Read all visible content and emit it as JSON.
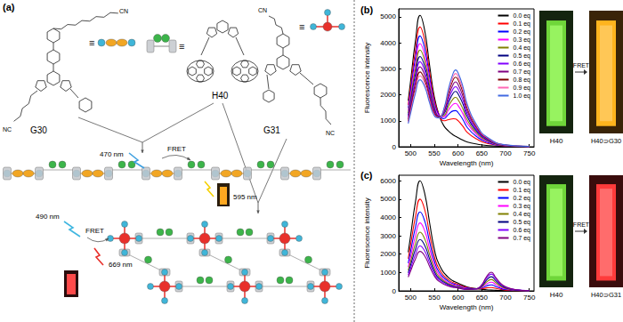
{
  "diagram": {
    "panel_label": "(a)",
    "molecules": [
      {
        "label": "G30",
        "equiv": "≡",
        "end_groups": [
          "CN",
          "NC"
        ]
      },
      {
        "label": "H40",
        "equiv": "≡"
      },
      {
        "label": "G31",
        "equiv": "≡",
        "end_groups": [
          "CN",
          "NC"
        ]
      }
    ],
    "assemblies": [
      {
        "excitation": "470 nm",
        "process": "FRET",
        "emission": "595 nm"
      },
      {
        "excitation": "490 nm",
        "process": "FRET",
        "emission": "669 nm"
      }
    ]
  },
  "photos": [
    {
      "before": "H40",
      "process": "FRET",
      "after": "H40⊃G30"
    },
    {
      "before": "H40",
      "process": "FRET",
      "after": "H40⊃G31"
    }
  ],
  "chart_data": [
    {
      "type": "line",
      "panel_label": "(b)",
      "x_label": "Wavelength (nm)",
      "y_label": "Fluorescence intensity",
      "x": [
        495,
        500,
        510,
        520,
        530,
        540,
        550,
        560,
        570,
        580,
        590,
        595,
        600,
        610,
        620,
        640,
        660,
        700,
        750
      ],
      "xlim": [
        475,
        760
      ],
      "xticks": [
        500,
        550,
        600,
        650,
        700,
        750
      ],
      "ylim": [
        0,
        5300
      ],
      "yticks": [
        0,
        1000,
        2000,
        3000,
        4000,
        5000
      ],
      "grid": false,
      "legend": "upper right",
      "series": [
        {
          "name": "0.0 eq",
          "color": "#000000",
          "values": [
            1768,
            2525,
            4040,
            5050,
            4444,
            3131,
            1919,
            1212,
            808,
            606,
            455,
            404,
            354,
            253,
            177,
            101,
            51,
            10,
            0
          ]
        },
        {
          "name": "0.1 eq",
          "color": "#ff0000",
          "values": [
            1610,
            2300,
            3680,
            4607,
            4062,
            2880,
            1804,
            1230,
            1002,
            1042,
            1079,
            1068,
            1001,
            790,
            546,
            288,
            137,
            27,
            4
          ]
        },
        {
          "name": "0.2 eq",
          "color": "#0000ff",
          "values": [
            1488,
            2125,
            3400,
            4261,
            3761,
            2677,
            1699,
            1209,
            1079,
            1245,
            1381,
            1390,
            1317,
            1053,
            727,
            379,
            180,
            35,
            5
          ]
        },
        {
          "name": "0.3 eq",
          "color": "#ff00ff",
          "values": [
            1383,
            1975,
            3160,
            3964,
            3503,
            2503,
            1609,
            1191,
            1145,
            1419,
            1639,
            1666,
            1587,
            1278,
            881,
            457,
            216,
            42,
            7
          ]
        },
        {
          "name": "0.4 eq",
          "color": "#808000",
          "values": [
            1295,
            1850,
            2960,
            3716,
            3288,
            2358,
            1534,
            1176,
            1200,
            1564,
            1853,
            1896,
            1811,
            1465,
            1010,
            522,
            245,
            47,
            8
          ]
        },
        {
          "name": "0.5 eq",
          "color": "#000080",
          "values": [
            1208,
            1725,
            2760,
            3469,
            3073,
            2213,
            1459,
            1161,
            1255,
            1709,
            2069,
            2126,
            2037,
            1653,
            1139,
            587,
            276,
            53,
            9
          ]
        },
        {
          "name": "0.6 eq",
          "color": "#8000ff",
          "values": [
            1138,
            1625,
            2600,
            3271,
            2901,
            2097,
            1399,
            1149,
            1299,
            1825,
            2241,
            2310,
            2217,
            1803,
            1242,
            639,
            300,
            58,
            10
          ]
        },
        {
          "name": "0.7 eq",
          "color": "#800080",
          "values": [
            1068,
            1525,
            2440,
            3073,
            2729,
            1981,
            1339,
            1137,
            1343,
            1941,
            2413,
            2494,
            2397,
            1953,
            1345,
            691,
            324,
            62,
            11
          ]
        },
        {
          "name": "0.8 eq",
          "color": "#800000",
          "values": [
            998,
            1425,
            2280,
            2875,
            2557,
            1865,
            1279,
            1125,
            1387,
            2057,
            2585,
            2678,
            2577,
            2103,
            1448,
            743,
            348,
            67,
            12
          ]
        },
        {
          "name": "0.9 eq",
          "color": "#ff69b4",
          "values": [
            945,
            1350,
            2160,
            2726,
            2428,
            1778,
            1234,
            1116,
            1420,
            2144,
            2713,
            2816,
            2711,
            2215,
            1525,
            782,
            365,
            70,
            13
          ]
        },
        {
          "name": "1.0 eq",
          "color": "#4169e1",
          "values": [
            893,
            1275,
            2040,
            2578,
            2299,
            1691,
            1189,
            1107,
            1453,
            2231,
            2843,
            2954,
            2847,
            2328,
            1602,
            821,
            384,
            74,
            14
          ]
        }
      ]
    },
    {
      "type": "line",
      "panel_label": "(c)",
      "x_label": "Wavelength (nm)",
      "y_label": "Fluorescence intensity",
      "x": [
        495,
        500,
        510,
        520,
        530,
        540,
        550,
        560,
        580,
        600,
        620,
        640,
        650,
        660,
        670,
        680,
        690,
        700,
        720,
        750
      ],
      "xlim": [
        475,
        760
      ],
      "xticks": [
        500,
        550,
        600,
        650,
        700,
        750
      ],
      "ylim": [
        0,
        6300
      ],
      "yticks": [
        0,
        1000,
        2000,
        3000,
        4000,
        5000,
        6000
      ],
      "grid": false,
      "legend": "upper right",
      "series": [
        {
          "name": "0.0 eq",
          "color": "#000000",
          "values": [
            2100,
            3000,
            4800,
            6000,
            5280,
            3720,
            2280,
            1440,
            720,
            420,
            210,
            120,
            90,
            60,
            42,
            30,
            18,
            12,
            6,
            0
          ]
        },
        {
          "name": "0.1 eq",
          "color": "#ff0000",
          "values": [
            1750,
            2500,
            4000,
            5000,
            4400,
            3100,
            1900,
            1200,
            600,
            350,
            175,
            112,
            120,
            163,
            185,
            130,
            75,
            43,
            16,
            2
          ]
        },
        {
          "name": "0.2 eq",
          "color": "#0000ff",
          "values": [
            1505,
            2150,
            3440,
            4300,
            3784,
            2666,
            1634,
            1032,
            516,
            301,
            151,
            110,
            155,
            268,
            330,
            232,
            133,
            75,
            25,
            3
          ]
        },
        {
          "name": "0.3 eq",
          "color": "#ff00ff",
          "values": [
            1295,
            1850,
            2960,
            3700,
            3256,
            2294,
            1406,
            888,
            444,
            259,
            130,
            110,
            191,
            375,
            476,
            334,
            191,
            106,
            36,
            5
          ]
        },
        {
          "name": "0.4 eq",
          "color": "#808000",
          "values": [
            1120,
            1600,
            2560,
            3200,
            2816,
            1984,
            1216,
            768,
            384,
            224,
            112,
            112,
            228,
            482,
            622,
            436,
            250,
            138,
            45,
            6
          ]
        },
        {
          "name": "0.5 eq",
          "color": "#000080",
          "values": [
            980,
            1400,
            2240,
            2800,
            2464,
            1736,
            1064,
            672,
            336,
            196,
            98,
            116,
            267,
            591,
            770,
            539,
            308,
            171,
            56,
            8
          ]
        },
        {
          "name": "0.6 eq",
          "color": "#8000ff",
          "values": [
            858,
            1225,
            1960,
            2450,
            2156,
            1519,
            931,
            588,
            294,
            172,
            86,
            121,
            307,
            700,
            917,
            642,
            367,
            203,
            65,
            9
          ]
        },
        {
          "name": "0.7 eq",
          "color": "#800080",
          "values": [
            753,
            1075,
            1720,
            2150,
            1892,
            1333,
            817,
            516,
            258,
            151,
            75,
            123,
            332,
            772,
            1015,
            711,
            406,
            224,
            72,
            10
          ]
        }
      ]
    }
  ]
}
